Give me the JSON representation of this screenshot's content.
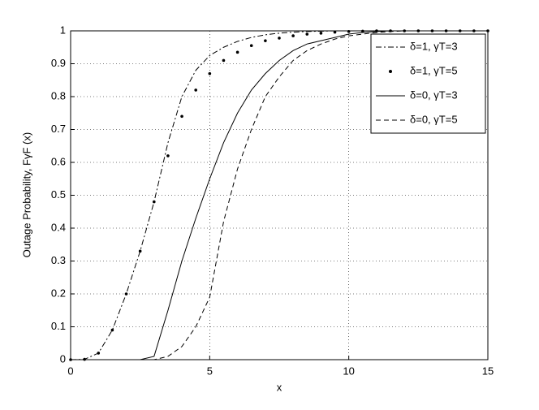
{
  "chart_data": {
    "type": "line",
    "xlabel": "x",
    "ylabel": "Outage Probability, FγF (x)",
    "x": [
      0,
      0.5,
      1,
      1.5,
      2,
      2.5,
      3,
      3.5,
      4,
      4.5,
      5,
      5.5,
      6,
      6.5,
      7,
      7.5,
      8,
      8.5,
      9,
      9.5,
      10,
      10.5,
      11,
      11.5,
      12,
      12.5,
      13,
      13.5,
      14,
      14.5,
      15
    ],
    "series": [
      {
        "name": "δ=1, γT=3",
        "color": "#000000",
        "style": "dashdot",
        "values": [
          0,
          0.001,
          0.02,
          0.09,
          0.2,
          0.33,
          0.48,
          0.66,
          0.8,
          0.88,
          0.925,
          0.95,
          0.968,
          0.98,
          0.988,
          0.993,
          0.996,
          0.998,
          0.999,
          1,
          1,
          1,
          1,
          1,
          1,
          1,
          1,
          1,
          1,
          1,
          1
        ]
      },
      {
        "name": "δ=1, γT=5",
        "color": "#000000",
        "style": "dots",
        "values": [
          0,
          0.001,
          0.02,
          0.09,
          0.2,
          0.33,
          0.48,
          0.62,
          0.74,
          0.82,
          0.87,
          0.91,
          0.935,
          0.955,
          0.97,
          0.978,
          0.985,
          0.99,
          0.993,
          0.996,
          0.998,
          0.999,
          1,
          1,
          1,
          1,
          1,
          1,
          1,
          1,
          1
        ]
      },
      {
        "name": "δ=0, γT=3",
        "color": "#000000",
        "style": "solid",
        "values": [
          0,
          0,
          0,
          0,
          0,
          0,
          0.01,
          0.15,
          0.3,
          0.43,
          0.55,
          0.66,
          0.75,
          0.82,
          0.87,
          0.91,
          0.94,
          0.96,
          0.97,
          0.98,
          0.99,
          0.995,
          0.998,
          1,
          1,
          1,
          1,
          1,
          1,
          1,
          1
        ]
      },
      {
        "name": "δ=0, γT=5",
        "color": "#000000",
        "style": "dashed",
        "values": [
          0,
          0,
          0,
          0,
          0,
          0,
          0,
          0.01,
          0.04,
          0.1,
          0.19,
          0.42,
          0.58,
          0.7,
          0.8,
          0.86,
          0.91,
          0.94,
          0.96,
          0.975,
          0.985,
          0.99,
          0.995,
          0.998,
          1,
          1,
          1,
          1,
          1,
          1,
          1
        ]
      }
    ],
    "xlim": [
      0,
      15
    ],
    "xticks": [
      0,
      5,
      10,
      15
    ],
    "ylim": [
      0,
      1
    ],
    "yticks": [
      0,
      0.1,
      0.2,
      0.3,
      0.4,
      0.5,
      0.6,
      0.7,
      0.8,
      0.9,
      1
    ],
    "grid": true,
    "legend": "northeast"
  }
}
